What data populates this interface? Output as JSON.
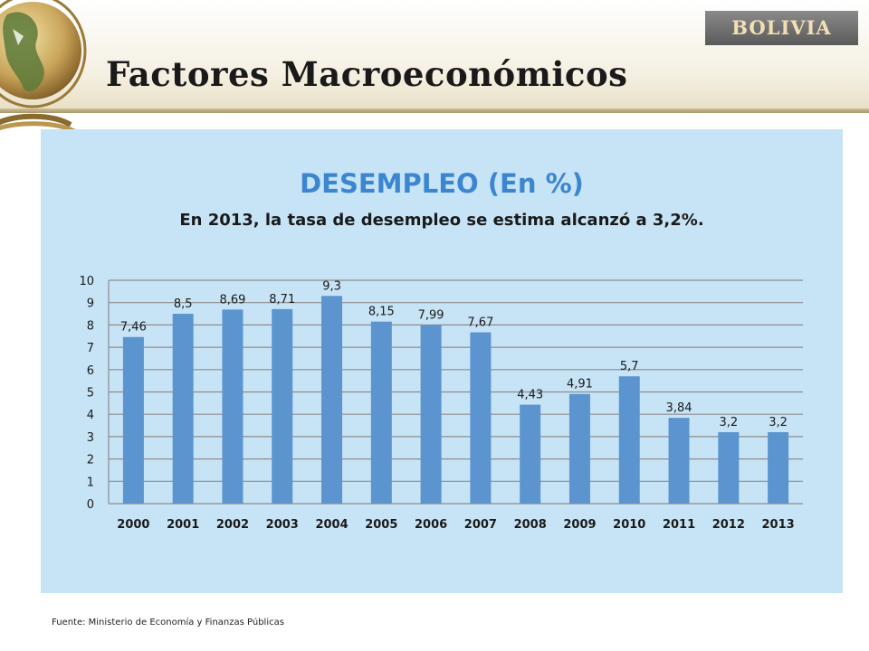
{
  "slide": {
    "title": "Factores Macroeconómicos",
    "country_badge": "BOLIVIA",
    "source": "Fuente: Ministerio de Economía y Finanzas Públicas"
  },
  "colors": {
    "bar": "#5b94cf",
    "panel_background": "#c7e4f6",
    "chart_title": "#3c86cf",
    "badge_background": "#6f6f6f",
    "badge_text": "#f0e0b4"
  },
  "chart_data": {
    "type": "bar",
    "title": "DESEMPLEO  (En %)",
    "subtitle": "En 2013,  la tasa de desempleo se estima alcanzó a  3,2%.",
    "categories": [
      "2000",
      "2001",
      "2002",
      "2003",
      "2004",
      "2005",
      "2006",
      "2007",
      "2008",
      "2009",
      "2010",
      "2011",
      "2012",
      "2013"
    ],
    "values": [
      7.46,
      8.5,
      8.69,
      8.71,
      9.3,
      8.15,
      7.99,
      7.67,
      4.43,
      4.91,
      5.7,
      3.84,
      3.2,
      3.2
    ],
    "data_labels": [
      "7,46",
      "8,5",
      "8,69",
      "8,71",
      "9,3",
      "8,15",
      "7,99",
      "7,67",
      "4,43",
      "4,91",
      "5,7",
      "3,84",
      "3,2",
      "3,2"
    ],
    "y_ticks": [
      "0",
      "1",
      "2",
      "3",
      "4",
      "5",
      "6",
      "7",
      "8",
      "9",
      "10"
    ],
    "ylim": [
      0,
      10
    ],
    "xlabel": "",
    "ylabel": "",
    "grid": true,
    "legend": "none"
  }
}
